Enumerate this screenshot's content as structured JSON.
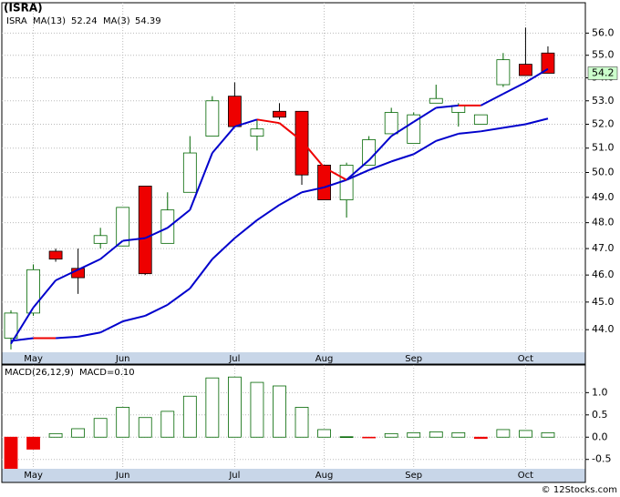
{
  "chart_data": {
    "type": "candlestick",
    "title": "(ISRA)",
    "ticker": "ISRA",
    "ticker_color": "#008800",
    "categories": [
      null,
      "May",
      null,
      null,
      null,
      "Jun",
      null,
      null,
      null,
      null,
      "Jul",
      null,
      null,
      null,
      "Aug",
      null,
      null,
      null,
      "Sep",
      null,
      null,
      null,
      null,
      "Oct",
      null
    ],
    "open": [
      43.7,
      44.6,
      46.9,
      46.25,
      47.2,
      47.1,
      49.45,
      47.2,
      49.2,
      51.5,
      53.2,
      51.5,
      52.55,
      52.55,
      50.3,
      48.9,
      50.3,
      51.6,
      51.2,
      52.9,
      52.5,
      52.0,
      53.7,
      54.6,
      55.1
    ],
    "high": [
      44.7,
      46.4,
      47.0,
      47.0,
      47.8,
      48.6,
      49.45,
      49.2,
      51.5,
      53.2,
      53.8,
      52.2,
      52.9,
      52.55,
      50.3,
      50.4,
      51.5,
      52.7,
      52.5,
      53.7,
      52.9,
      52.4,
      55.1,
      56.25,
      55.4
    ],
    "low": [
      43.3,
      44.5,
      46.5,
      45.3,
      47.0,
      47.1,
      46.0,
      47.2,
      49.2,
      51.5,
      51.9,
      50.9,
      52.2,
      49.5,
      48.9,
      48.2,
      50.3,
      51.6,
      51.2,
      52.9,
      51.9,
      52.0,
      53.6,
      54.1,
      54.2
    ],
    "close": [
      44.6,
      46.2,
      46.6,
      45.9,
      47.5,
      48.6,
      46.05,
      48.5,
      50.8,
      53.0,
      51.9,
      51.8,
      52.3,
      49.9,
      48.9,
      50.3,
      51.35,
      52.5,
      52.4,
      53.1,
      52.8,
      52.4,
      54.8,
      54.1,
      54.2
    ],
    "up_color": "#006600",
    "down_color": "#ee0000",
    "series": [
      {
        "name": "MA(13)",
        "color": "#0000cc",
        "values": [
          43.6,
          43.7,
          43.7,
          43.75,
          43.9,
          44.3,
          44.5,
          44.9,
          45.5,
          46.6,
          47.4,
          48.1,
          48.7,
          49.2,
          49.4,
          49.7,
          50.1,
          50.45,
          50.75,
          51.3,
          51.6,
          51.7,
          51.85,
          52.0,
          52.24
        ]
      },
      {
        "name": "MA(3)",
        "color": "#0000cc",
        "values": [
          43.5,
          44.8,
          45.8,
          46.2,
          46.6,
          47.3,
          47.4,
          47.8,
          48.5,
          50.8,
          51.9,
          52.2,
          52.05,
          51.3,
          50.2,
          49.7,
          50.5,
          51.5,
          52.1,
          52.7,
          52.8,
          52.8,
          53.3,
          53.8,
          54.39
        ]
      }
    ],
    "line_down_color": "#ee0000",
    "ylim": [
      43.2,
      57.4
    ],
    "log_scale": true,
    "grid": true,
    "yticks": [
      {
        "value": 44,
        "label": "44.0"
      },
      {
        "value": 45,
        "label": "45.0"
      },
      {
        "value": 46,
        "label": "46.0"
      },
      {
        "value": 47,
        "label": "47.0"
      },
      {
        "value": 48,
        "label": "48.0"
      },
      {
        "value": 49,
        "label": "49.0"
      },
      {
        "value": 50,
        "label": "50.0"
      },
      {
        "value": 51,
        "label": "51.0"
      },
      {
        "value": 52,
        "label": "52.0"
      },
      {
        "value": 53,
        "label": "53.0"
      },
      {
        "value": 54,
        "label": "54.0"
      },
      {
        "value": 55,
        "label": "55.0"
      },
      {
        "value": 56,
        "label": "56.0"
      }
    ],
    "price_tag": 54.2,
    "price_tag_color": "#ccffcc",
    "macd": {
      "type": "bar",
      "name": "MACD(26,12,9)",
      "value_text": "MACD=0.10",
      "name_color": "#0000cc",
      "values": [
        -0.8,
        -0.27,
        0.08,
        0.19,
        0.42,
        0.67,
        0.44,
        0.58,
        0.92,
        1.33,
        1.35,
        1.23,
        1.15,
        0.67,
        0.17,
        0.01,
        -0.01,
        0.08,
        0.1,
        0.12,
        0.1,
        -0.03,
        0.17,
        0.15,
        0.1
      ],
      "ylim": [
        -0.71,
        1.62
      ],
      "yticks": [
        {
          "value": -0.5,
          "label": "-0.5"
        },
        {
          "value": 0,
          "label": "0.0"
        },
        {
          "value": 0.5,
          "label": "0.5"
        },
        {
          "value": 1,
          "label": "1.0"
        }
      ]
    },
    "footer": "© 12Stocks.com",
    "band_color": "#c8d6e8"
  }
}
